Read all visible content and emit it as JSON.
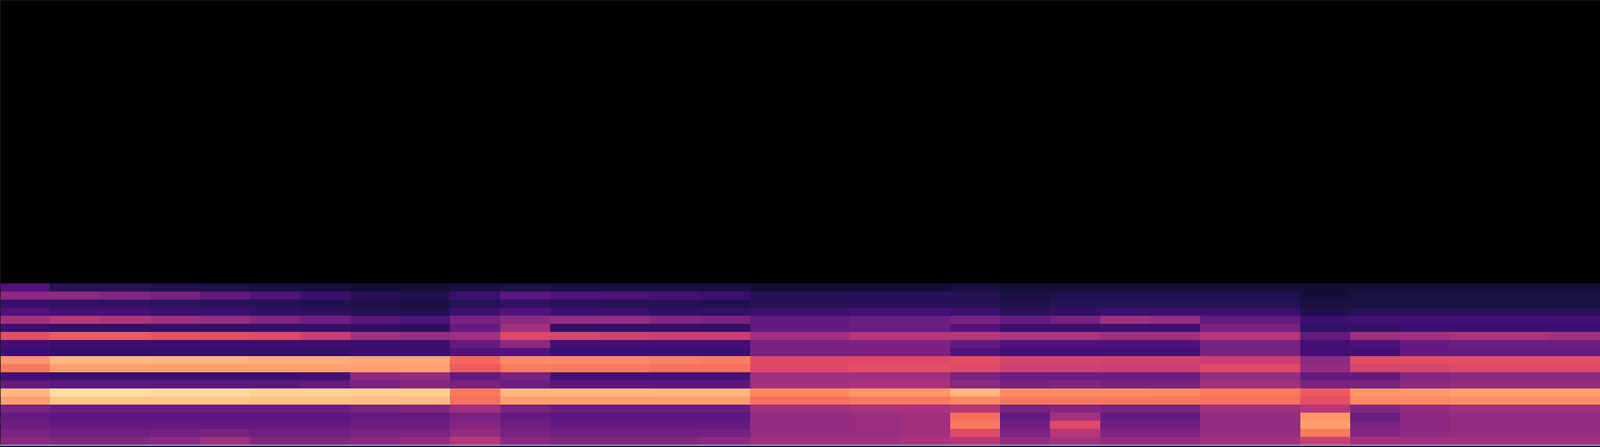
{
  "chart_data": {
    "type": "heatmap",
    "xlim": [
      0,
      32
    ],
    "ylim": [
      0,
      55
    ],
    "tick_labels": false,
    "grid": false,
    "color": "magma",
    "color_range": [
      0,
      1
    ],
    "cells": [
      [
        0.4,
        0.35,
        0.32,
        0.3,
        0.35,
        0.8,
        0.85,
        0.3,
        0.22,
        0.72,
        0.78,
        0.2,
        0.22,
        0.62,
        0.2,
        0.45,
        0.25,
        0.2,
        0.4,
        0.25
      ],
      [
        0.38,
        0.33,
        0.3,
        0.28,
        0.32,
        0.88,
        0.93,
        0.28,
        0.2,
        0.8,
        0.85,
        0.18,
        0.2,
        0.65,
        0.18,
        0.5,
        0.22,
        0.18,
        0.4,
        0.15
      ],
      [
        0.38,
        0.33,
        0.3,
        0.28,
        0.32,
        0.88,
        0.93,
        0.28,
        0.2,
        0.8,
        0.85,
        0.18,
        0.2,
        0.65,
        0.18,
        0.48,
        0.22,
        0.18,
        0.38,
        0.15
      ],
      [
        0.4,
        0.34,
        0.3,
        0.28,
        0.32,
        0.88,
        0.92,
        0.28,
        0.2,
        0.8,
        0.84,
        0.18,
        0.2,
        0.63,
        0.18,
        0.45,
        0.2,
        0.17,
        0.35,
        0.14
      ],
      [
        0.45,
        0.35,
        0.3,
        0.28,
        0.32,
        0.88,
        0.92,
        0.28,
        0.2,
        0.8,
        0.84,
        0.18,
        0.2,
        0.62,
        0.18,
        0.42,
        0.2,
        0.16,
        0.3,
        0.13
      ],
      [
        0.38,
        0.33,
        0.3,
        0.28,
        0.32,
        0.87,
        0.91,
        0.28,
        0.2,
        0.8,
        0.83,
        0.18,
        0.2,
        0.6,
        0.18,
        0.38,
        0.18,
        0.15,
        0.25,
        0.12
      ],
      [
        0.38,
        0.33,
        0.3,
        0.28,
        0.32,
        0.87,
        0.91,
        0.3,
        0.22,
        0.8,
        0.83,
        0.18,
        0.2,
        0.55,
        0.18,
        0.33,
        0.17,
        0.14,
        0.2,
        0.11
      ],
      [
        0.4,
        0.35,
        0.32,
        0.3,
        0.35,
        0.87,
        0.9,
        0.35,
        0.4,
        0.8,
        0.82,
        0.2,
        0.2,
        0.45,
        0.17,
        0.28,
        0.15,
        0.13,
        0.16,
        0.1
      ],
      [
        0.42,
        0.36,
        0.32,
        0.3,
        0.38,
        0.86,
        0.9,
        0.38,
        0.42,
        0.8,
        0.82,
        0.2,
        0.2,
        0.42,
        0.16,
        0.25,
        0.14,
        0.12,
        0.14,
        0.1
      ],
      [
        0.5,
        0.42,
        0.38,
        0.35,
        0.45,
        0.7,
        0.72,
        0.35,
        0.3,
        0.65,
        0.68,
        0.25,
        0.3,
        0.45,
        0.3,
        0.35,
        0.2,
        0.15,
        0.2,
        0.12
      ],
      [
        0.4,
        0.35,
        0.33,
        0.3,
        0.35,
        0.8,
        0.85,
        0.32,
        0.35,
        0.72,
        0.76,
        0.25,
        0.4,
        0.6,
        0.45,
        0.4,
        0.25,
        0.18,
        0.28,
        0.13
      ],
      [
        0.38,
        0.33,
        0.3,
        0.28,
        0.32,
        0.8,
        0.85,
        0.28,
        0.22,
        0.72,
        0.75,
        0.2,
        0.22,
        0.58,
        0.18,
        0.42,
        0.2,
        0.16,
        0.25,
        0.12
      ],
      [
        0.38,
        0.33,
        0.3,
        0.28,
        0.32,
        0.8,
        0.85,
        0.28,
        0.22,
        0.72,
        0.75,
        0.2,
        0.22,
        0.57,
        0.18,
        0.42,
        0.2,
        0.15,
        0.24,
        0.12
      ],
      [
        0.38,
        0.33,
        0.3,
        0.28,
        0.32,
        0.8,
        0.84,
        0.28,
        0.22,
        0.7,
        0.74,
        0.2,
        0.22,
        0.55,
        0.18,
        0.38,
        0.18,
        0.15,
        0.22,
        0.12
      ],
      [
        0.4,
        0.34,
        0.3,
        0.28,
        0.32,
        0.8,
        0.84,
        0.28,
        0.22,
        0.7,
        0.73,
        0.2,
        0.22,
        0.55,
        0.18,
        0.36,
        0.18,
        0.14,
        0.2,
        0.12
      ],
      [
        0.45,
        0.42,
        0.42,
        0.42,
        0.45,
        0.7,
        0.75,
        0.45,
        0.45,
        0.6,
        0.6,
        0.35,
        0.35,
        0.45,
        0.3,
        0.3,
        0.2,
        0.15,
        0.15,
        0.1
      ],
      [
        0.45,
        0.42,
        0.42,
        0.42,
        0.45,
        0.7,
        0.75,
        0.45,
        0.45,
        0.6,
        0.6,
        0.35,
        0.35,
        0.45,
        0.3,
        0.3,
        0.2,
        0.15,
        0.15,
        0.1
      ],
      [
        0.45,
        0.43,
        0.43,
        0.43,
        0.47,
        0.72,
        0.78,
        0.47,
        0.45,
        0.62,
        0.6,
        0.36,
        0.36,
        0.5,
        0.32,
        0.32,
        0.22,
        0.16,
        0.16,
        0.1
      ],
      [
        0.48,
        0.45,
        0.45,
        0.45,
        0.47,
        0.72,
        0.78,
        0.47,
        0.45,
        0.62,
        0.6,
        0.36,
        0.36,
        0.5,
        0.32,
        0.32,
        0.22,
        0.16,
        0.16,
        0.1
      ],
      [
        0.5,
        0.6,
        0.72,
        0.7,
        0.5,
        0.75,
        0.85,
        0.4,
        0.35,
        0.6,
        0.62,
        0.25,
        0.3,
        0.5,
        0.25,
        0.35,
        0.2,
        0.15,
        0.15,
        0.12
      ],
      [
        0.42,
        0.36,
        0.33,
        0.3,
        0.35,
        0.72,
        0.76,
        0.35,
        0.32,
        0.56,
        0.58,
        0.22,
        0.25,
        0.48,
        0.2,
        0.3,
        0.16,
        0.13,
        0.12,
        0.1
      ],
      [
        0.45,
        0.5,
        0.6,
        0.45,
        0.38,
        0.72,
        0.76,
        0.38,
        0.32,
        0.56,
        0.58,
        0.22,
        0.25,
        0.48,
        0.2,
        0.35,
        0.18,
        0.15,
        0.14,
        0.1
      ],
      [
        0.42,
        0.36,
        0.33,
        0.3,
        0.35,
        0.72,
        0.76,
        0.35,
        0.32,
        0.55,
        0.57,
        0.22,
        0.25,
        0.45,
        0.2,
        0.45,
        0.2,
        0.15,
        0.14,
        0.1
      ],
      [
        0.42,
        0.36,
        0.33,
        0.3,
        0.35,
        0.72,
        0.75,
        0.35,
        0.32,
        0.55,
        0.57,
        0.22,
        0.25,
        0.45,
        0.2,
        0.42,
        0.2,
        0.15,
        0.14,
        0.1
      ],
      [
        0.45,
        0.42,
        0.42,
        0.42,
        0.45,
        0.7,
        0.72,
        0.45,
        0.42,
        0.6,
        0.55,
        0.35,
        0.35,
        0.5,
        0.35,
        0.3,
        0.2,
        0.15,
        0.14,
        0.1
      ],
      [
        0.45,
        0.42,
        0.42,
        0.42,
        0.45,
        0.7,
        0.72,
        0.45,
        0.42,
        0.6,
        0.55,
        0.35,
        0.35,
        0.5,
        0.35,
        0.3,
        0.2,
        0.15,
        0.14,
        0.1
      ],
      [
        0.55,
        0.72,
        0.8,
        0.78,
        0.5,
        0.62,
        0.65,
        0.35,
        0.3,
        0.42,
        0.4,
        0.22,
        0.22,
        0.3,
        0.18,
        0.2,
        0.14,
        0.12,
        0.1,
        0.1
      ],
      [
        0.45,
        0.38,
        0.35,
        0.32,
        0.38,
        0.75,
        0.78,
        0.35,
        0.3,
        0.58,
        0.62,
        0.22,
        0.25,
        0.45,
        0.18,
        0.22,
        0.15,
        0.12,
        0.12,
        0.1
      ],
      [
        0.45,
        0.4,
        0.4,
        0.4,
        0.42,
        0.75,
        0.78,
        0.4,
        0.38,
        0.58,
        0.62,
        0.3,
        0.3,
        0.45,
        0.2,
        0.22,
        0.15,
        0.12,
        0.12,
        0.1
      ],
      [
        0.45,
        0.42,
        0.42,
        0.42,
        0.45,
        0.76,
        0.8,
        0.42,
        0.4,
        0.6,
        0.62,
        0.3,
        0.32,
        0.48,
        0.2,
        0.22,
        0.15,
        0.12,
        0.12,
        0.1
      ],
      [
        0.45,
        0.42,
        0.42,
        0.42,
        0.45,
        0.76,
        0.8,
        0.42,
        0.4,
        0.6,
        0.62,
        0.3,
        0.32,
        0.48,
        0.2,
        0.22,
        0.15,
        0.12,
        0.12,
        0.1
      ],
      [
        0.45,
        0.42,
        0.42,
        0.42,
        0.45,
        0.76,
        0.8,
        0.42,
        0.4,
        0.6,
        0.62,
        0.3,
        0.32,
        0.45,
        0.2,
        0.22,
        0.15,
        0.12,
        0.12,
        0.1
      ]
    ]
  }
}
